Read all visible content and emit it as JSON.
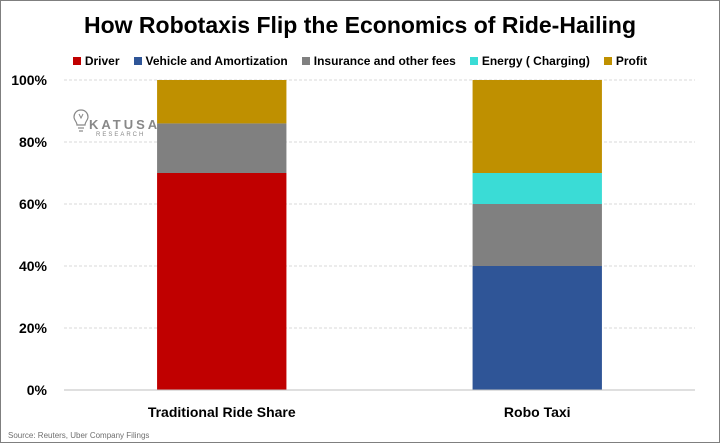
{
  "chart_data": {
    "type": "bar",
    "stacked": true,
    "title": "How Robotaxis Flip the Economics of Ride-Hailing",
    "categories": [
      "Traditional Ride Share",
      "Robo Taxi"
    ],
    "series": [
      {
        "name": "Driver",
        "color": "#c00000",
        "values": [
          70,
          0
        ]
      },
      {
        "name": "Vehicle and Amortization",
        "color": "#2f5597",
        "values": [
          0,
          40
        ]
      },
      {
        "name": "Insurance and other fees",
        "color": "#808080",
        "values": [
          16,
          20
        ]
      },
      {
        "name": "Energy ( Charging)",
        "color": "#3adcd6",
        "values": [
          0,
          10
        ]
      },
      {
        "name": "Profit",
        "color": "#bf9000",
        "values": [
          14,
          30
        ]
      }
    ],
    "ylim": [
      0,
      100
    ],
    "yticks": [
      "0%",
      "20%",
      "40%",
      "60%",
      "80%",
      "100%"
    ],
    "grid": true,
    "legend_position": "top"
  },
  "logo": {
    "name": "KATUSA",
    "subtitle": "RESEARCH"
  },
  "source": "Source: Reuters, Uber Company Filings"
}
